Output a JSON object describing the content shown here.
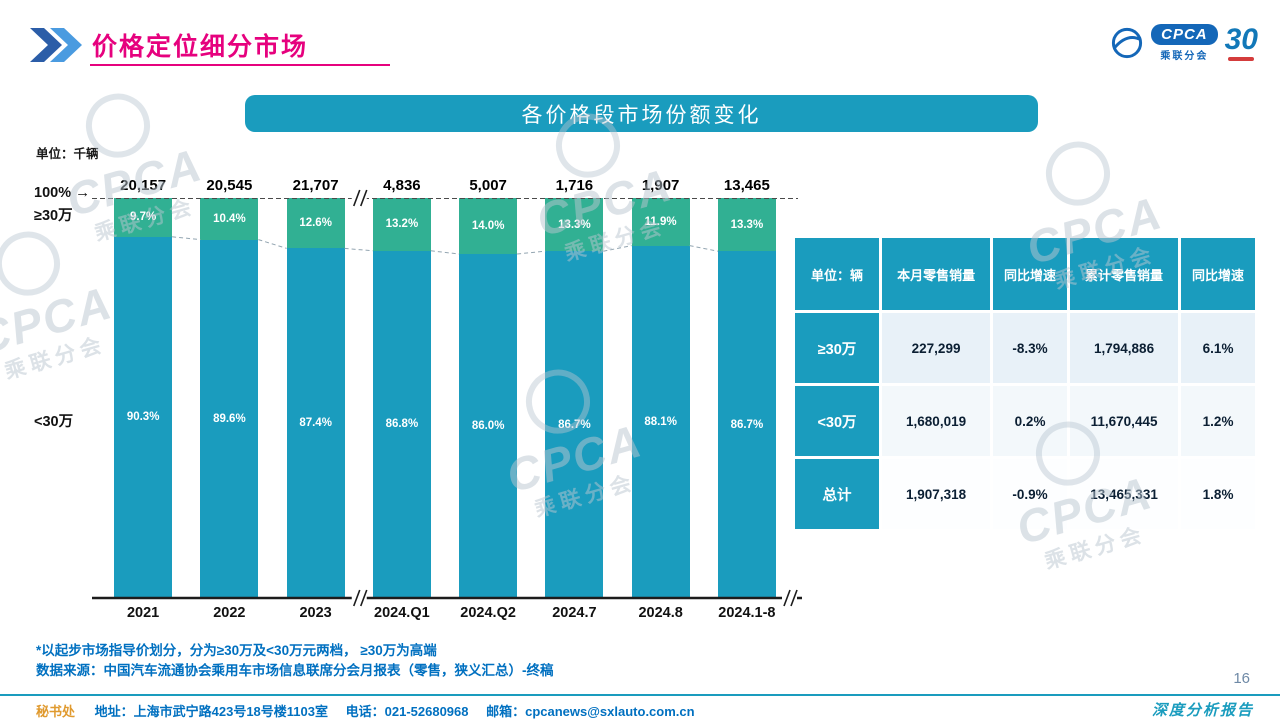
{
  "header": {
    "title": "价格定位细分市场",
    "logo": {
      "cpca": "CPCA",
      "sub": "乘联分会",
      "anniversary": "30"
    }
  },
  "banner": {
    "title": "各价格段市场份额变化"
  },
  "chart": {
    "unit_label": "单位：千辆",
    "axis_top_label": "100%",
    "left_label_high": "≥30万",
    "left_label_low": "<30万"
  },
  "icons": {
    "arrow_right": "→"
  },
  "chart_data": {
    "type": "bar",
    "stacked": true,
    "title": "各价格段市场份额变化",
    "unit": "千辆",
    "categories": [
      "2021",
      "2022",
      "2023",
      "2024.Q1",
      "2024.Q2",
      "2024.7",
      "2024.8",
      "2024.1-8"
    ],
    "totals": [
      "20,157",
      "20,545",
      "21,707",
      "4,836",
      "5,007",
      "1,716",
      "1,907",
      "13,465"
    ],
    "series": [
      {
        "name": "≥30万",
        "color": "#31B093",
        "values": [
          9.7,
          10.4,
          12.6,
          13.2,
          14.0,
          13.3,
          11.9,
          13.3
        ]
      },
      {
        "name": "<30万",
        "color": "#1A9CBE",
        "values": [
          90.3,
          89.6,
          87.4,
          86.8,
          86.0,
          86.7,
          88.1,
          86.7
        ]
      }
    ],
    "ylim": [
      0,
      100
    ],
    "y_axis": "100% stacked market share",
    "axis_breaks": [
      "between 2023 and 2024.Q1",
      "right end of baseline"
    ]
  },
  "table": {
    "headers": [
      "单位：辆",
      "本月零售销量",
      "同比增速",
      "累计零售销量",
      "同比增速"
    ],
    "rows": [
      {
        "label": "≥30万",
        "cells": [
          "227,299",
          "-8.3%",
          "1,794,886",
          "6.1%"
        ]
      },
      {
        "label": "<30万",
        "cells": [
          "1,680,019",
          "0.2%",
          "11,670,445",
          "1.2%"
        ]
      },
      {
        "label": "总计",
        "cells": [
          "1,907,318",
          "-0.9%",
          "13,465,331",
          "1.8%"
        ]
      }
    ]
  },
  "notes": {
    "line1": "*以起步市场指导价划分，分为≥30万及<30万元两档， ≥30万为高端",
    "line2": "数据来源：中国汽车流通协会乘用车市场信息联席分会月报表（零售，狭义汇总）-终稿"
  },
  "footer": {
    "secretariat": "秘书处",
    "address": "地址：上海市武宁路423号18号楼1103室",
    "phone": "电话：021-52680968",
    "email": "邮箱：cpcanews@sxlauto.com.cn",
    "report_label": "深度分析报告",
    "page_number": "16"
  },
  "watermark": {
    "line1": "CPCA",
    "line2": "乘联分会"
  },
  "colors": {
    "teal": "#1A9CBE",
    "green": "#31B093",
    "magenta": "#E6017E",
    "note_blue": "#0070C0",
    "secretariat_orange": "#E09A2F"
  }
}
